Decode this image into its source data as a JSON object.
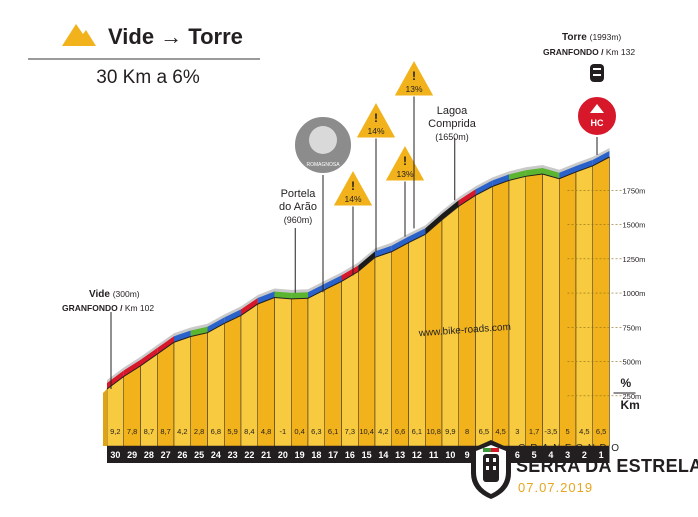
{
  "header": {
    "title": "Vide → Torre",
    "summary": "30 Km a 6%"
  },
  "chart_data": {
    "type": "area",
    "title": "",
    "xlabel": "Km",
    "ylabel": "",
    "x_unit": "Km",
    "gradient_unit": "%",
    "y_unit": "m",
    "ylim": [
      0,
      2000
    ],
    "y_ticks": [
      250,
      500,
      750,
      1000,
      1250,
      1500,
      1750
    ],
    "y_tick_labels": [
      "250m",
      "500m",
      "750m",
      "1000m",
      "1250m",
      "1500m",
      "1750m"
    ],
    "km_markers": [
      "30",
      "29",
      "28",
      "27",
      "26",
      "25",
      "24",
      "23",
      "22",
      "21",
      "20",
      "19",
      "18",
      "17",
      "16",
      "15",
      "14",
      "13",
      "12",
      "11",
      "10",
      "9",
      "8",
      "7",
      "6",
      "5",
      "4",
      "3",
      "2",
      "1"
    ],
    "gradients": [
      "9,2",
      "7,8",
      "8,7",
      "8,7",
      "4,2",
      "2,8",
      "6,8",
      "5,9",
      "8,4",
      "4,8",
      "-1",
      "0,4",
      "6,3",
      "6,1",
      "7,3",
      "10,4",
      "4,2",
      "6,6",
      "6,1",
      "10,8",
      "9,9",
      "8",
      "6,5",
      "4,5",
      "3",
      "1,7",
      "-3,5",
      "5",
      "4,5",
      "6,5"
    ],
    "start_elevation": 300,
    "end_elevation": 1993,
    "finish_gradient_colors": {
      "black": "#1a1a1a",
      "red": "#d7182a",
      "blue": "#2a62c9",
      "green": "#5cb531"
    },
    "fill_colors": {
      "gold": "#f2b21b",
      "light_gold": "#f7ca3f",
      "side": "#b7b7b7"
    },
    "annotations": {
      "start": {
        "name": "Vide",
        "elev": "(300m)",
        "event": "GRANFONDO /",
        "km": "Km 102"
      },
      "portela": {
        "line1": "Portela",
        "line2": "do Arão",
        "elev": "(960m)"
      },
      "lagoa": {
        "line1": "Lagoa",
        "line2": "Comprida",
        "elev": "(1650m)"
      },
      "finish": {
        "name": "Torre",
        "elev": "(1993m)",
        "event": "GRANFONDO /",
        "km": "Km 132",
        "category": "HC"
      },
      "warnings": [
        "14%",
        "14%",
        "13%",
        "13%"
      ],
      "website": "www.bike-roads.com",
      "logo_caption": "ROMAGNOSA"
    }
  },
  "brand": {
    "word": "GRANFONDO",
    "name": "SERRA DA ESTRELA",
    "date": "07.07.2019"
  }
}
